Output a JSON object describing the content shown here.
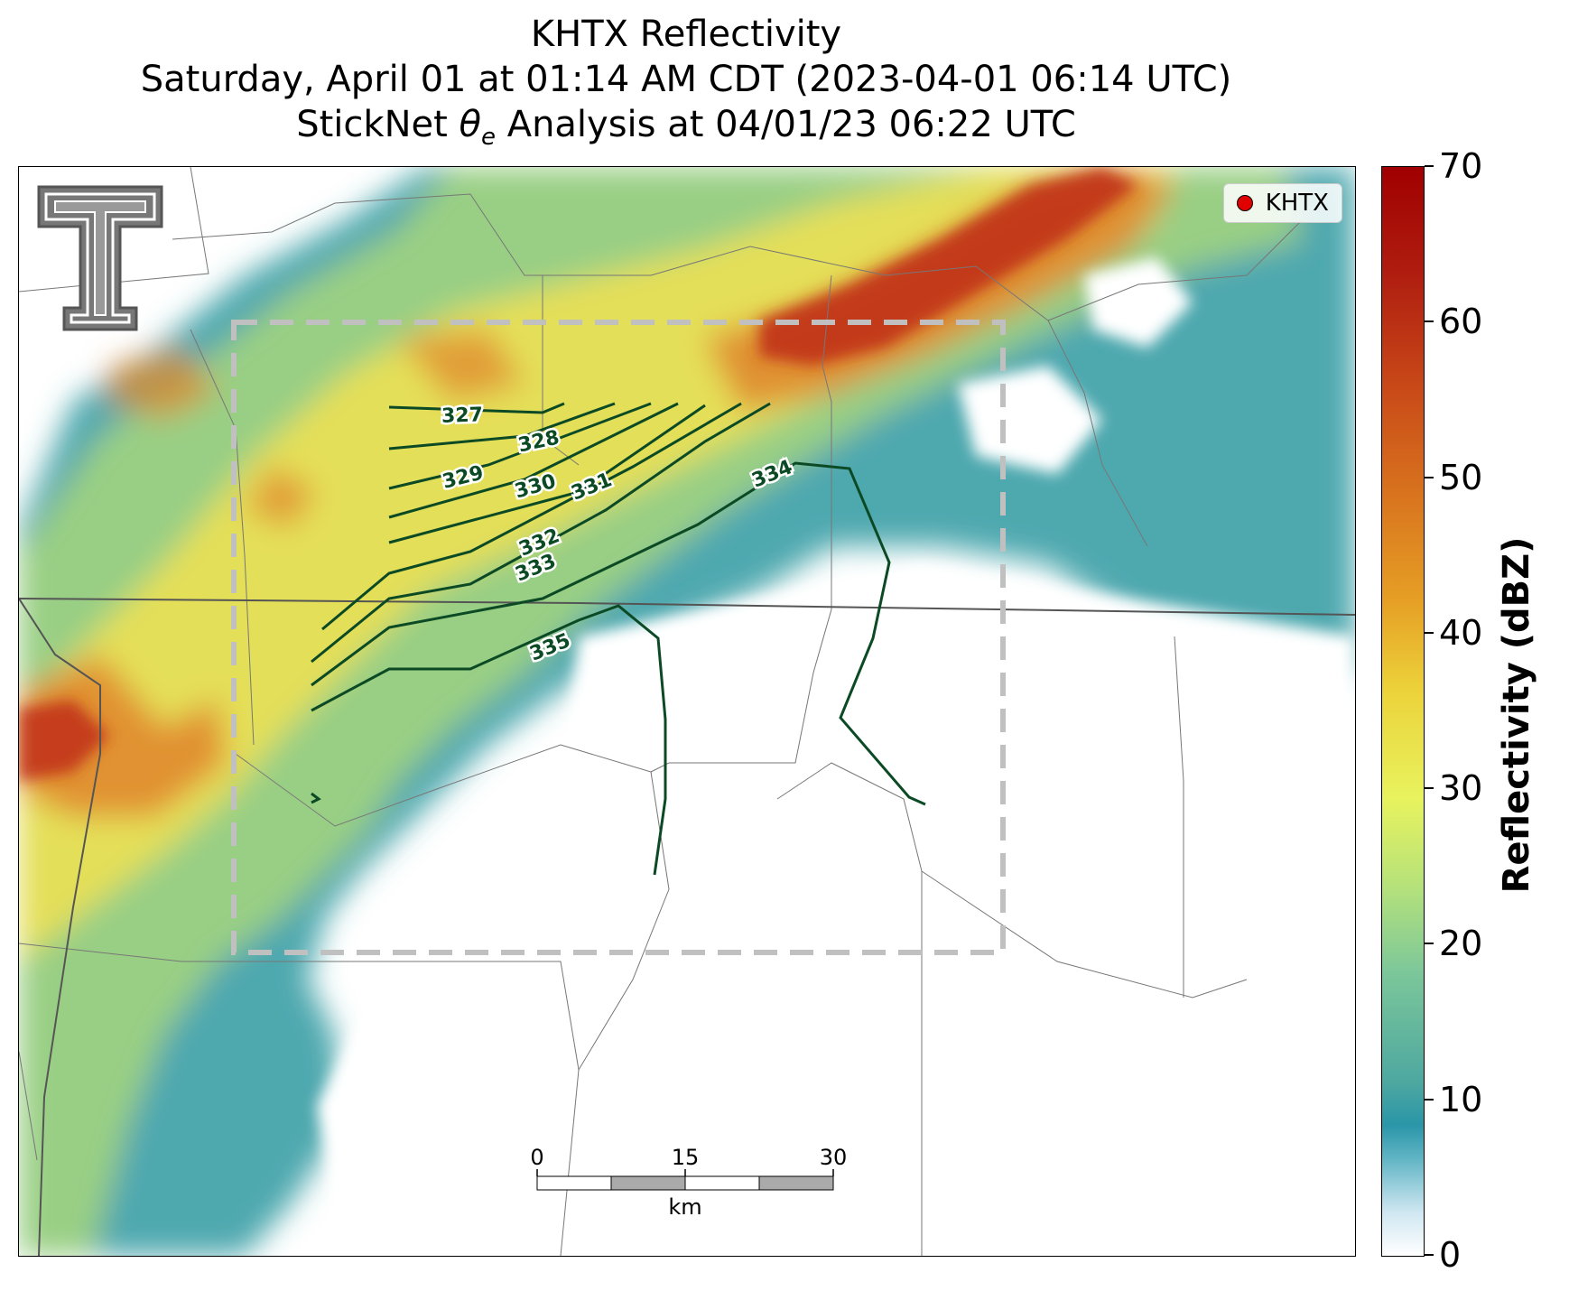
{
  "title": {
    "line1": "KHTX Reflectivity",
    "line2": "Saturday, April 01 at 01:14 AM CDT (2023-04-01 06:14 UTC)",
    "line3_prefix": "StickNet ",
    "line3_theta": "θ",
    "line3_sub": "e",
    "line3_suffix": " Analysis at 04/01/23 06:22 UTC"
  },
  "legend": {
    "label": "KHTX",
    "marker_color": "#e00000"
  },
  "colorbar": {
    "label": "Reflectivity (dBZ)",
    "ticks": [
      "0",
      "10",
      "20",
      "30",
      "40",
      "50",
      "60",
      "70"
    ],
    "range": [
      0,
      70
    ]
  },
  "contours": {
    "color": "#0b4a24",
    "labels": [
      "327",
      "328",
      "329",
      "330",
      "331",
      "332",
      "333",
      "334",
      "335"
    ]
  },
  "scalebar": {
    "ticks": [
      "0",
      "15",
      "30"
    ],
    "unit": "km"
  },
  "logo": {
    "name": "texas-tech-double-t-logo"
  },
  "colors": {
    "heavy": "#c0301a",
    "strong": "#e08a2c",
    "moderate": "#e8df55",
    "light": "#9ed282",
    "weak": "#3aa0a6",
    "analysis_box": "#c0c0c0"
  }
}
